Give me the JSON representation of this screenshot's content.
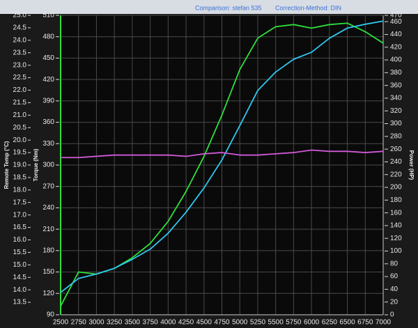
{
  "chart_data": {
    "type": "line",
    "title": "Comparison: stefan 535",
    "subtitle": "Correction-Method: DIN",
    "x": [
      2500,
      2750,
      3000,
      3250,
      3500,
      3750,
      4000,
      4250,
      4500,
      4750,
      5000,
      5250,
      5500,
      5750,
      6000,
      6250,
      6500,
      6750,
      7000
    ],
    "xlim": [
      2500,
      7000
    ],
    "xticks": [
      2500,
      2750,
      3000,
      3250,
      3500,
      3750,
      4000,
      4250,
      4500,
      4750,
      5000,
      5250,
      5500,
      5750,
      6000,
      6250,
      6500,
      6750,
      7000
    ],
    "ylabel": "Torque (Nm)",
    "ylim": [
      90,
      510
    ],
    "yticks": [
      90,
      120,
      150,
      180,
      210,
      240,
      270,
      300,
      330,
      360,
      390,
      420,
      450,
      480,
      510
    ],
    "y2label": "Power (HP)",
    "y2lim": [
      0,
      470
    ],
    "y2ticks": [
      0,
      20,
      40,
      60,
      80,
      100,
      120,
      140,
      160,
      180,
      200,
      220,
      240,
      260,
      280,
      300,
      320,
      340,
      360,
      380,
      400,
      420,
      440,
      460,
      470
    ],
    "y3label": "Remote Temp (°C)",
    "y3lim": [
      13.0,
      25.0
    ],
    "y3ticks": [
      13.5,
      {
        "value": 14,
        "label": "14.0"
      },
      14.5,
      {
        "value": 15,
        "label": "15.0"
      },
      15.5,
      {
        "value": 16,
        "label": "16.0"
      },
      16.5,
      {
        "value": 17,
        "label": "17.0"
      },
      17.5,
      {
        "value": 18,
        "label": "18.0"
      },
      18.5,
      {
        "value": 19,
        "label": "19.0"
      },
      19.5,
      {
        "value": 20,
        "label": "20.0"
      },
      20.5,
      {
        "value": 21,
        "label": "21.0"
      },
      21.5,
      {
        "value": 22,
        "label": "22.0"
      },
      22.5,
      {
        "value": 23,
        "label": "23.0"
      },
      23.5,
      {
        "value": 24,
        "label": "24.0"
      },
      24.5,
      {
        "value": 25,
        "label": "25.0"
      }
    ],
    "grid": true,
    "series": [
      {
        "name": "Torque",
        "color": "#2ee03c",
        "axis": "y",
        "values": [
          102,
          150,
          147,
          155,
          170,
          190,
          221,
          263,
          312,
          370,
          434,
          478,
          494,
          497,
          492,
          497,
          499,
          487,
          471
        ]
      },
      {
        "name": "Power",
        "color": "#2fc8f0",
        "axis": "y2",
        "values": [
          35,
          57,
          64,
          73,
          87,
          103,
          128,
          161,
          199,
          243,
          297,
          352,
          381,
          401,
          412,
          434,
          450,
          456,
          461
        ]
      },
      {
        "name": "Remote Temp",
        "color": "#d25ad8",
        "axis": "y3",
        "values": [
          19.3,
          19.3,
          19.35,
          19.4,
          19.4,
          19.4,
          19.4,
          19.35,
          19.45,
          19.5,
          19.4,
          19.4,
          19.45,
          19.5,
          19.6,
          19.55,
          19.55,
          19.5,
          19.55
        ]
      }
    ]
  }
}
